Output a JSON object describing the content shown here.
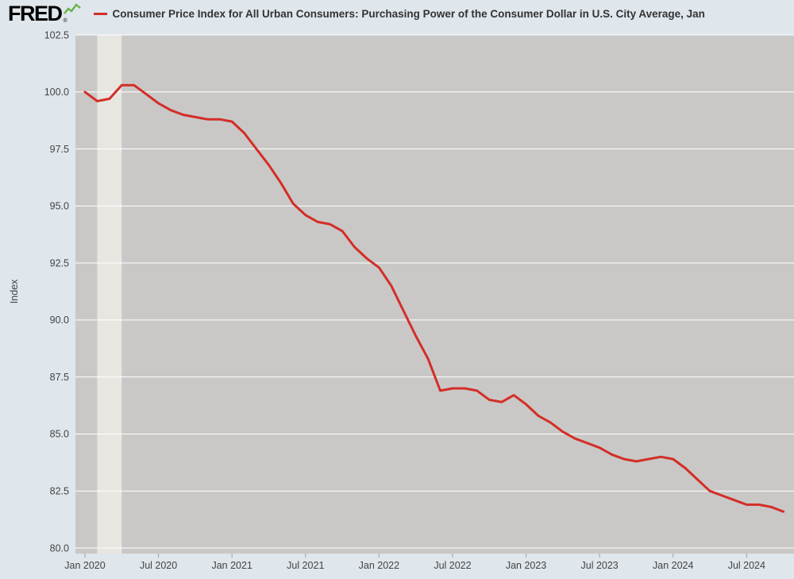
{
  "header": {
    "logo_text": "FRED",
    "registered_mark": "®",
    "title": "Consumer Price Index for All Urban Consumers: Purchasing Power of the Consumer Dollar in U.S. City Average, Jan"
  },
  "colors": {
    "page_bg": "#dfe6ec",
    "plot_bg": "#c9c8c6",
    "recession_band": "#e8e6e1",
    "gridline": "#ffffff",
    "line": "#d42d27",
    "logo_green": "#69b345",
    "tick_text": "#444444",
    "title_text": "#333333"
  },
  "chart_data": {
    "type": "line",
    "title": "Consumer Price Index for All Urban Consumers: Purchasing Power of the Consumer Dollar in U.S. City Average, Jan",
    "xlabel": "",
    "ylabel": "Index",
    "grid": "horizontal",
    "legend_position": "top",
    "ylim": [
      80.0,
      102.5
    ],
    "y_ticks": [
      102.5,
      100.0,
      97.5,
      95.0,
      92.5,
      90.0,
      87.5,
      85.0,
      82.5,
      80.0
    ],
    "x_ticks": [
      {
        "label": "Jan 2020",
        "month_index": 0
      },
      {
        "label": "Jul 2020",
        "month_index": 6
      },
      {
        "label": "Jan 2021",
        "month_index": 12
      },
      {
        "label": "Jul 2021",
        "month_index": 18
      },
      {
        "label": "Jan 2022",
        "month_index": 24
      },
      {
        "label": "Jul 2022",
        "month_index": 30
      },
      {
        "label": "Jan 2023",
        "month_index": 36
      },
      {
        "label": "Jul 2023",
        "month_index": 42
      },
      {
        "label": "Jan 2024",
        "month_index": 48
      },
      {
        "label": "Jul 2024",
        "month_index": 54
      }
    ],
    "recession_band": {
      "start_month": "2020-02",
      "end_month": "2020-04"
    },
    "months": [
      "2020-01",
      "2020-02",
      "2020-03",
      "2020-04",
      "2020-05",
      "2020-06",
      "2020-07",
      "2020-08",
      "2020-09",
      "2020-10",
      "2020-11",
      "2020-12",
      "2021-01",
      "2021-02",
      "2021-03",
      "2021-04",
      "2021-05",
      "2021-06",
      "2021-07",
      "2021-08",
      "2021-09",
      "2021-10",
      "2021-11",
      "2021-12",
      "2022-01",
      "2022-02",
      "2022-03",
      "2022-04",
      "2022-05",
      "2022-06",
      "2022-07",
      "2022-08",
      "2022-09",
      "2022-10",
      "2022-11",
      "2022-12",
      "2023-01",
      "2023-02",
      "2023-03",
      "2023-04",
      "2023-05",
      "2023-06",
      "2023-07",
      "2023-08",
      "2023-09",
      "2023-10",
      "2023-11",
      "2023-12",
      "2024-01",
      "2024-02",
      "2024-03",
      "2024-04",
      "2024-05",
      "2024-06",
      "2024-07",
      "2024-08",
      "2024-09",
      "2024-10"
    ],
    "series": [
      {
        "name": "Consumer Price Index for All Urban Consumers: Purchasing Power of the Consumer Dollar in U.S. City Average",
        "values": [
          100.0,
          99.6,
          99.7,
          100.3,
          100.3,
          99.9,
          99.5,
          99.2,
          99.0,
          98.9,
          98.8,
          98.8,
          98.7,
          98.2,
          97.5,
          96.8,
          96.0,
          95.1,
          94.6,
          94.3,
          94.2,
          93.9,
          93.2,
          92.7,
          92.3,
          91.5,
          90.4,
          89.3,
          88.3,
          86.9,
          87.0,
          87.0,
          86.9,
          86.5,
          86.4,
          86.7,
          86.3,
          85.8,
          85.5,
          85.1,
          84.8,
          84.6,
          84.4,
          84.1,
          83.9,
          83.8,
          83.9,
          84.0,
          83.9,
          83.5,
          83.0,
          82.5,
          82.3,
          82.1,
          81.9,
          81.9,
          81.8,
          81.6
        ]
      }
    ]
  }
}
